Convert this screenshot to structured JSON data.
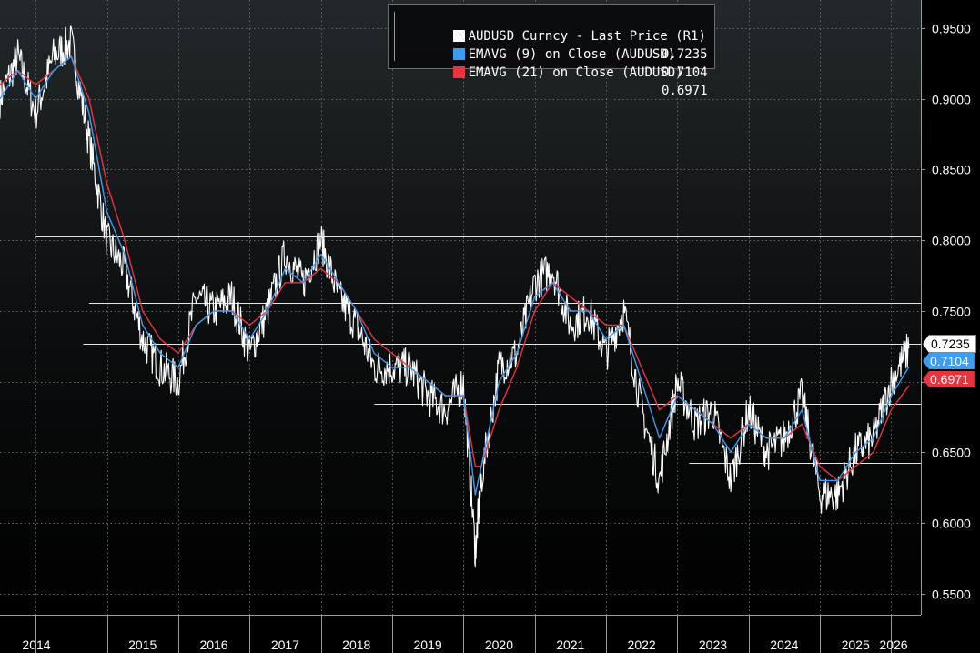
{
  "chart_data": {
    "type": "line",
    "title": "",
    "xlabel": "",
    "ylabel": "",
    "x_ticks": [
      "2014",
      "2015",
      "2016",
      "2017",
      "2018",
      "2019",
      "2020",
      "2021",
      "2022",
      "2023",
      "2024",
      "2025",
      "2026"
    ],
    "y_ticks": [
      "0.9500",
      "0.9000",
      "0.8500",
      "0.8000",
      "0.7500",
      "0.7000",
      "0.6500",
      "0.6000",
      "0.5500"
    ],
    "ylim": [
      0.535,
      0.97
    ],
    "xlim": [
      "2013-07",
      "2026-06"
    ],
    "grid": true,
    "legend_position": "top-center",
    "series": [
      {
        "name": "AUDUSD Curncy - Last Price (R1)",
        "last": "0.7235",
        "color": "#ffffff",
        "x": [
          "2013-07",
          "2013-10",
          "2014-01",
          "2014-04",
          "2014-07",
          "2014-10",
          "2015-01",
          "2015-04",
          "2015-07",
          "2015-10",
          "2016-01",
          "2016-04",
          "2016-07",
          "2016-10",
          "2017-01",
          "2017-04",
          "2017-07",
          "2017-10",
          "2018-01",
          "2018-04",
          "2018-07",
          "2018-10",
          "2019-01",
          "2019-04",
          "2019-07",
          "2019-10",
          "2020-01",
          "2020-03",
          "2020-04",
          "2020-07",
          "2020-10",
          "2021-01",
          "2021-04",
          "2021-07",
          "2021-10",
          "2022-01",
          "2022-04",
          "2022-07",
          "2022-10",
          "2023-01",
          "2023-04",
          "2023-07",
          "2023-10",
          "2024-01",
          "2024-04",
          "2024-07",
          "2024-10",
          "2025-01",
          "2025-04",
          "2025-07",
          "2025-10",
          "2026-01",
          "2026-04"
        ],
        "values": [
          0.9,
          0.93,
          0.89,
          0.93,
          0.94,
          0.87,
          0.8,
          0.78,
          0.73,
          0.71,
          0.7,
          0.76,
          0.75,
          0.76,
          0.72,
          0.75,
          0.79,
          0.77,
          0.8,
          0.76,
          0.74,
          0.71,
          0.71,
          0.71,
          0.69,
          0.68,
          0.7,
          0.58,
          0.63,
          0.71,
          0.72,
          0.77,
          0.78,
          0.74,
          0.75,
          0.72,
          0.75,
          0.68,
          0.63,
          0.7,
          0.67,
          0.68,
          0.63,
          0.68,
          0.65,
          0.66,
          0.69,
          0.62,
          0.62,
          0.65,
          0.66,
          0.7,
          0.7235
        ]
      },
      {
        "name": "EMAVG (9) on Close (AUDUSD)",
        "last": "0.7104",
        "color": "#3d9cf0",
        "values": [
          0.9,
          0.92,
          0.9,
          0.92,
          0.93,
          0.89,
          0.82,
          0.79,
          0.74,
          0.72,
          0.71,
          0.74,
          0.75,
          0.75,
          0.73,
          0.75,
          0.78,
          0.77,
          0.79,
          0.77,
          0.75,
          0.72,
          0.71,
          0.71,
          0.7,
          0.69,
          0.69,
          0.62,
          0.64,
          0.7,
          0.72,
          0.76,
          0.77,
          0.75,
          0.75,
          0.73,
          0.74,
          0.7,
          0.66,
          0.69,
          0.68,
          0.67,
          0.65,
          0.67,
          0.66,
          0.66,
          0.68,
          0.63,
          0.63,
          0.65,
          0.66,
          0.69,
          0.7104
        ]
      },
      {
        "name": "EMAVG (21) on Close (AUDUSD)",
        "last": "0.6971",
        "color": "#e8343f",
        "values": [
          0.91,
          0.92,
          0.91,
          0.92,
          0.93,
          0.9,
          0.84,
          0.8,
          0.75,
          0.73,
          0.72,
          0.74,
          0.75,
          0.75,
          0.74,
          0.75,
          0.77,
          0.77,
          0.78,
          0.77,
          0.75,
          0.73,
          0.72,
          0.71,
          0.7,
          0.69,
          0.69,
          0.64,
          0.64,
          0.68,
          0.71,
          0.75,
          0.77,
          0.76,
          0.75,
          0.74,
          0.74,
          0.71,
          0.68,
          0.69,
          0.68,
          0.67,
          0.66,
          0.67,
          0.66,
          0.66,
          0.67,
          0.64,
          0.63,
          0.64,
          0.65,
          0.68,
          0.6971
        ]
      }
    ],
    "reference_lines": [
      {
        "y": 0.8025,
        "x_start": "2014-01"
      },
      {
        "y": 0.7555,
        "x_start": "2014-10"
      },
      {
        "y": 0.7265,
        "x_start": "2014-09"
      },
      {
        "y": 0.6845,
        "x_start": "2018-10"
      },
      {
        "y": 0.6425,
        "x_start": "2023-03"
      }
    ]
  },
  "colors": {
    "background_top": "#202528",
    "background_bottom": "#000000",
    "grid": "#6a6a6a",
    "axis_text": "#ffffff",
    "price": "#ffffff",
    "ema9": "#3d9cf0",
    "ema21": "#e8343f"
  }
}
